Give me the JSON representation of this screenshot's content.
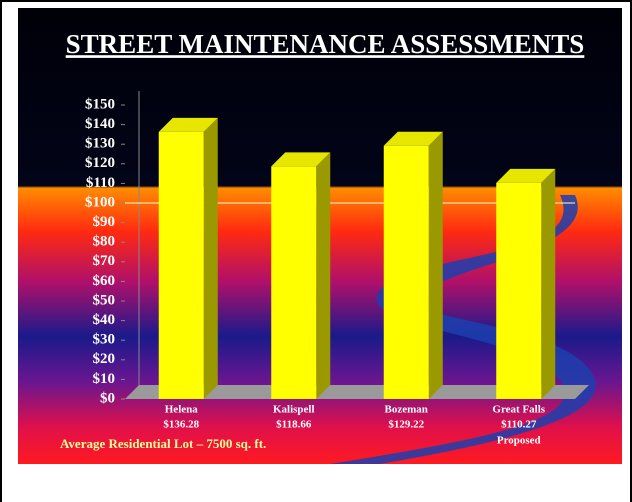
{
  "chart_data": {
    "type": "bar3d",
    "title": "STREET MAINTENANCE ASSESSMENTS",
    "categories": [
      "Helena",
      "Kalispell",
      "Bozeman",
      "Great Falls"
    ],
    "values": [
      136.28,
      118.66,
      129.22,
      110.27
    ],
    "value_labels": [
      "$136.28",
      "$118.66",
      "$129.22",
      "$110.27"
    ],
    "annotations": [
      {
        "category": 3,
        "text": "Proposed"
      }
    ],
    "footnote": "Average Residential Lot – 7500 sq. ft.",
    "color": "#ffff00",
    "ylim": [
      0,
      150
    ],
    "yticks": [
      {
        "value": 0,
        "label": "$0"
      },
      {
        "value": 10,
        "label": "$10"
      },
      {
        "value": 20,
        "label": "$20"
      },
      {
        "value": 30,
        "label": "$30"
      },
      {
        "value": 40,
        "label": "$40"
      },
      {
        "value": 50,
        "label": "$50"
      },
      {
        "value": 60,
        "label": "$60"
      },
      {
        "value": 70,
        "label": "$70"
      },
      {
        "value": 80,
        "label": "$80"
      },
      {
        "value": 90,
        "label": "$90"
      },
      {
        "value": 100,
        "label": "$100"
      },
      {
        "value": 110,
        "label": "$110"
      },
      {
        "value": 120,
        "label": "$120"
      },
      {
        "value": 130,
        "label": "$130"
      },
      {
        "value": 140,
        "label": "$140"
      },
      {
        "value": 150,
        "label": "$150"
      }
    ]
  }
}
